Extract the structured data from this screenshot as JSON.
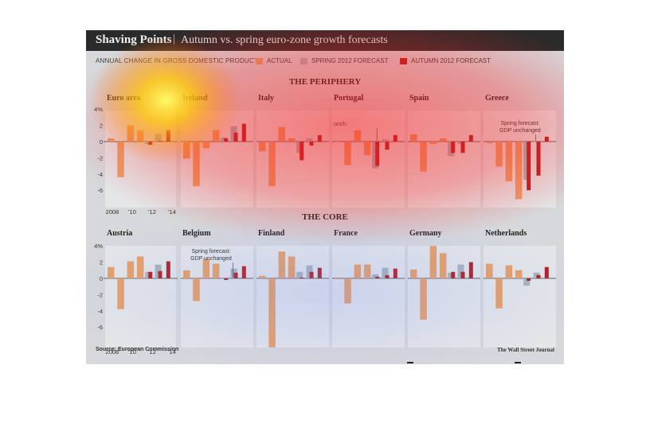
{
  "header": {
    "title": "Shaving Points",
    "separator": "|",
    "subtitle": "Autumn vs. spring euro-zone growth forecasts"
  },
  "legend": {
    "title": "ANNUAL CHANGE IN GROSS DOMESTIC PRODUCT",
    "items": [
      {
        "label": "ACTUAL",
        "color": "#e8a068"
      },
      {
        "label": "SPRING 2012 FORECAST",
        "color": "#a9b3bc"
      },
      {
        "label": "AUTUMN 2012 FORECAST",
        "color": "#b32025"
      }
    ]
  },
  "sections": [
    {
      "title": "THE PERIPHERY"
    },
    {
      "title": "THE CORE"
    }
  ],
  "footer": {
    "source": "Source: European Commission",
    "credit": "The Wall Street Journal"
  },
  "chart_data": {
    "type": "bar",
    "ylabel_unit": "%",
    "ylim": [
      -8,
      4
    ],
    "yticks": [
      "4%",
      "2",
      "0",
      "-2",
      "-4",
      "-6"
    ],
    "x_labels": [
      "2008",
      "'10",
      "'12",
      "'14"
    ],
    "years_actual": [
      2008,
      2009,
      2010,
      2011
    ],
    "years_forecast": [
      2012,
      2013,
      2014
    ],
    "panels": [
      {
        "country": "Euro area",
        "group": 0,
        "actual": [
          0.4,
          -4.4,
          2.0,
          1.4
        ],
        "spring": [
          -0.3,
          1.0,
          null
        ],
        "autumn": [
          -0.4,
          0.1,
          1.4
        ]
      },
      {
        "country": "Ireland",
        "group": 0,
        "actual": [
          -2.1,
          -5.5,
          -0.8,
          1.4
        ],
        "spring": [
          0.5,
          1.9,
          null
        ],
        "autumn": [
          0.4,
          1.1,
          2.2
        ]
      },
      {
        "country": "Italy",
        "group": 0,
        "actual": [
          -1.2,
          -5.5,
          1.8,
          0.4
        ],
        "spring": [
          -1.4,
          0.4,
          null
        ],
        "autumn": [
          -2.3,
          -0.5,
          0.8
        ]
      },
      {
        "country": "Portugal",
        "group": 0,
        "actual": [
          0.0,
          -2.9,
          1.4,
          -1.7
        ],
        "spring": [
          -3.3,
          0.3,
          null
        ],
        "autumn": [
          -3.0,
          -1.0,
          0.8
        ],
        "annotation": "unch."
      },
      {
        "country": "Spain",
        "group": 0,
        "actual": [
          0.9,
          -3.7,
          -0.3,
          0.4
        ],
        "spring": [
          -1.8,
          -0.3,
          null
        ],
        "autumn": [
          -1.4,
          -1.4,
          0.8
        ]
      },
      {
        "country": "Greece",
        "group": 0,
        "actual": [
          -0.2,
          -3.1,
          -4.9,
          -7.1
        ],
        "spring": [
          -4.7,
          0.0,
          null
        ],
        "autumn": [
          -6.0,
          -4.2,
          0.6
        ],
        "annotation": "Spring forecast: GDP unchanged"
      },
      {
        "country": "Austria",
        "group": 1,
        "actual": [
          1.4,
          -3.8,
          2.1,
          2.7
        ],
        "spring": [
          0.8,
          1.7,
          null
        ],
        "autumn": [
          0.8,
          0.9,
          2.1
        ]
      },
      {
        "country": "Belgium",
        "group": 1,
        "actual": [
          1.0,
          -2.8,
          2.4,
          1.8
        ],
        "spring": [
          0.0,
          1.2,
          null
        ],
        "autumn": [
          -0.2,
          0.7,
          1.5
        ],
        "annotation": "Spring forecast: GDP unchanged"
      },
      {
        "country": "Finland",
        "group": 1,
        "actual": [
          0.3,
          -8.5,
          3.3,
          2.7
        ],
        "spring": [
          0.8,
          1.6,
          null
        ],
        "autumn": [
          0.1,
          0.8,
          1.3
        ]
      },
      {
        "country": "France",
        "group": 1,
        "actual": [
          -0.1,
          -3.1,
          1.7,
          1.7
        ],
        "spring": [
          0.5,
          1.3,
          null
        ],
        "autumn": [
          0.2,
          0.4,
          1.2
        ]
      },
      {
        "country": "Germany",
        "group": 1,
        "actual": [
          1.1,
          -5.1,
          4.0,
          3.1
        ],
        "spring": [
          0.7,
          1.7,
          null
        ],
        "autumn": [
          0.8,
          0.8,
          2.0
        ]
      },
      {
        "country": "Netherlands",
        "group": 1,
        "actual": [
          1.8,
          -3.7,
          1.6,
          1.0
        ],
        "spring": [
          -0.9,
          0.7,
          null
        ],
        "autumn": [
          -0.3,
          0.4,
          1.4
        ]
      }
    ]
  }
}
